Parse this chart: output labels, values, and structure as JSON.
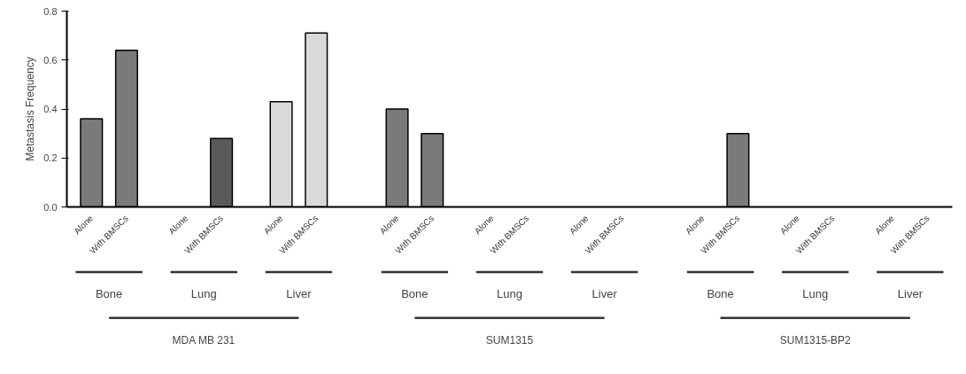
{
  "chart_data": {
    "type": "bar",
    "ylabel": "Metastasis Frequency",
    "categories": [
      "Alone",
      "With BMSCs",
      "Alone",
      "With BMSCs",
      "Alone",
      "With BMSCs",
      "Alone",
      "With BMSCs",
      "Alone",
      "With BMSCs",
      "Alone",
      "With BMSCs",
      "Alone",
      "With BMSCs",
      "Alone",
      "With BMSCs",
      "Alone",
      "With BMSCs"
    ],
    "values": [
      0.36,
      0.64,
      0,
      0.28,
      0.43,
      0.71,
      0.4,
      0.3,
      0,
      0,
      0,
      0,
      0,
      0.3,
      0,
      0,
      0,
      0
    ],
    "colors": [
      "#7a7a7a",
      "#7a7a7a",
      "#bdbdbd",
      "#5a5a5a",
      "#d9d9d9",
      "#d9d9d9",
      "#7a7a7a",
      "#7a7a7a",
      "#7a7a7a",
      "#7a7a7a",
      "#7a7a7a",
      "#7a7a7a",
      "#7a7a7a",
      "#7a7a7a",
      "#7a7a7a",
      "#7a7a7a",
      "#7a7a7a",
      "#7a7a7a"
    ],
    "annotations": [
      "Bone",
      "Lung",
      "Liver",
      "Bone",
      "Lung",
      "Liver",
      "Bone",
      "Lung",
      "Liver",
      "MDA MB 231",
      "SUM1315",
      "SUM1315-BP2"
    ],
    "ylim": [
      0,
      0.8
    ],
    "yticks": [
      {
        "value": 0,
        "label": "0.0"
      },
      0.2,
      0.4,
      0.6,
      0.8
    ]
  }
}
